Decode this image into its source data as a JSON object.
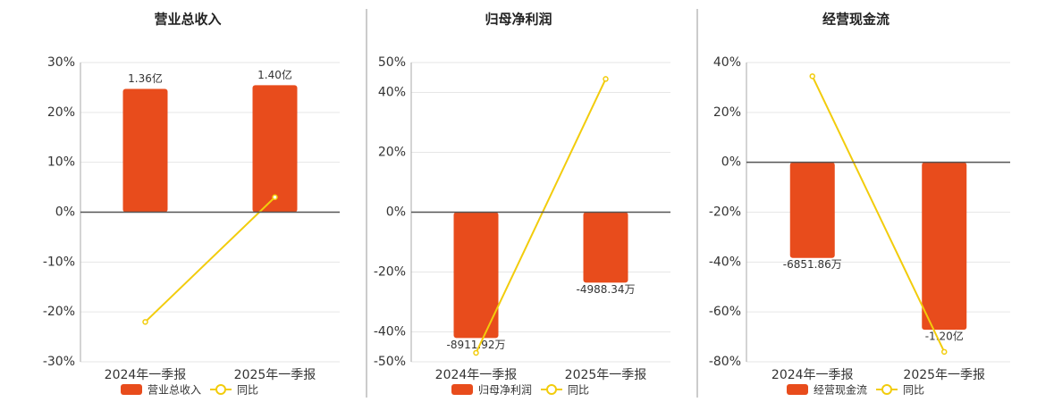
{
  "chart_data": [
    {
      "type": "bar",
      "title": "营业总收入",
      "categories": [
        "2024年一季报",
        "2025年一季报"
      ],
      "series": [
        {
          "name": "营业总收入",
          "color": "#e84c1c",
          "values": [
            136000000,
            140000000
          ],
          "value_labels": [
            "1.36亿",
            "1.40亿"
          ],
          "axis": "y2"
        },
        {
          "name": "同比",
          "type": "line",
          "color": "#f2cc0c",
          "values": [
            -22,
            3
          ]
        }
      ],
      "ylim": [
        -30,
        30
      ],
      "yticks": [
        {
          "value": -30,
          "label": "-30%"
        },
        {
          "value": -20,
          "label": "-20%"
        },
        {
          "value": -10,
          "label": "-10%"
        },
        {
          "value": 0,
          "label": "0%"
        },
        {
          "value": 10,
          "label": "10%"
        },
        {
          "value": 20,
          "label": "20%"
        },
        {
          "value": 30,
          "label": "30%"
        }
      ],
      "y2lim": [
        -165000000,
        165000000
      ]
    },
    {
      "type": "bar",
      "title": "归母净利润",
      "categories": [
        "2024年一季报",
        "2025年一季报"
      ],
      "series": [
        {
          "name": "归母净利润",
          "color": "#e84c1c",
          "values": [
            -89119200,
            -49883400
          ],
          "value_labels": [
            "-8911.92万",
            "-4988.34万"
          ],
          "axis": "y2"
        },
        {
          "name": "同比",
          "type": "line",
          "color": "#f2cc0c",
          "values": [
            -47,
            44.5
          ]
        }
      ],
      "ylim": [
        -50,
        50
      ],
      "yticks": [
        {
          "value": -50,
          "label": "-50%"
        },
        {
          "value": -40,
          "label": "-40%"
        },
        {
          "value": -20,
          "label": "-20%"
        },
        {
          "value": 0,
          "label": "0%"
        },
        {
          "value": 20,
          "label": "20%"
        },
        {
          "value": 40,
          "label": "40%"
        },
        {
          "value": 50,
          "label": "50%"
        }
      ],
      "y2lim": [
        -106000000,
        106000000
      ]
    },
    {
      "type": "bar",
      "title": "经营现金流",
      "categories": [
        "2024年一季报",
        "2025年一季报"
      ],
      "series": [
        {
          "name": "经营现金流",
          "color": "#e84c1c",
          "values": [
            -68518600,
            -120000000
          ],
          "value_labels": [
            "-6851.86万",
            "-1.20亿"
          ],
          "axis": "y2"
        },
        {
          "name": "同比",
          "type": "line",
          "color": "#f2cc0c",
          "values": [
            34.5,
            -76
          ]
        }
      ],
      "ylim": [
        -80,
        40
      ],
      "yticks": [
        {
          "value": -80,
          "label": "-80%"
        },
        {
          "value": -60,
          "label": "-60%"
        },
        {
          "value": -40,
          "label": "-40%"
        },
        {
          "value": -20,
          "label": "-20%"
        },
        {
          "value": 0,
          "label": "0%"
        },
        {
          "value": 20,
          "label": "20%"
        },
        {
          "value": 40,
          "label": "40%"
        }
      ],
      "y2lim": [
        -143000000,
        71600000
      ]
    }
  ]
}
